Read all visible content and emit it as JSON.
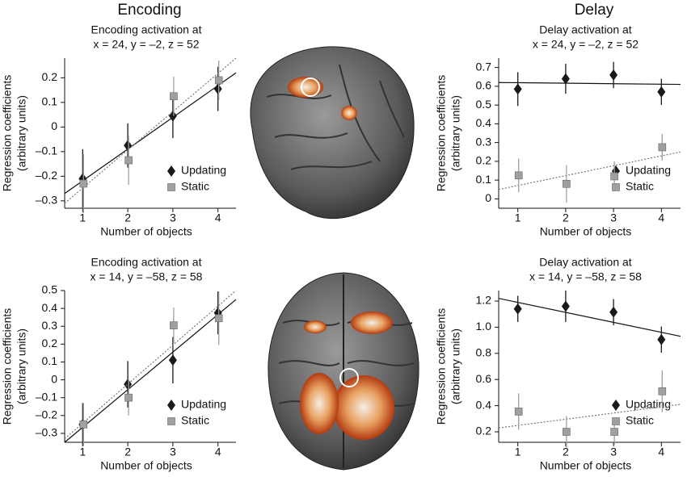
{
  "column_titles": [
    "Encoding",
    "Delay"
  ],
  "chart_data": [
    {
      "type": "scatter",
      "title": [
        "Encoding activation at",
        "x = 24, y = –2, z = 52"
      ],
      "ylabel": [
        "Regression coefficients",
        "(arbitrary units)"
      ],
      "xlabel": "Number of objects",
      "x": [
        1,
        2,
        3,
        4
      ],
      "xlim": [
        0.6,
        4.4
      ],
      "xticks": [
        1,
        2,
        3,
        4
      ],
      "ylim": [
        -0.33,
        0.28
      ],
      "yticks": [
        {
          "value": -0.3,
          "label": "–0.3"
        },
        {
          "value": -0.2,
          "label": "–0.2"
        },
        {
          "value": -0.1,
          "label": "–0.1"
        },
        0,
        0.1,
        0.2
      ],
      "legend": "lower right",
      "series": [
        {
          "name": "Updating",
          "color": "#1a1a1a",
          "marker": "diamond",
          "fit_style": "solid",
          "values": [
            -0.21,
            -0.075,
            0.045,
            0.155
          ],
          "errors": [
            0.12,
            0.09,
            0.09,
            0.09
          ],
          "fit": [
            -0.27,
            0.22
          ]
        },
        {
          "name": "Static",
          "color": "#a0a0a0",
          "marker": "square",
          "fit_style": "dotted",
          "values": [
            -0.23,
            -0.135,
            0.125,
            0.19
          ],
          "errors": [
            0.12,
            0.1,
            0.08,
            0.08
          ],
          "fit": [
            -0.31,
            0.28
          ]
        }
      ]
    },
    {
      "type": "scatter",
      "title": [
        "Delay activation at",
        "x = 24, y = –2, z = 52"
      ],
      "ylabel": [
        "Regression coefficients",
        "(arbitrary units)"
      ],
      "xlabel": "Number of objects",
      "x": [
        1,
        2,
        3,
        4
      ],
      "xlim": [
        0.6,
        4.4
      ],
      "xticks": [
        1,
        2,
        3,
        4
      ],
      "ylim": [
        -0.05,
        0.75
      ],
      "yticks": [
        0,
        0.1,
        0.2,
        0.3,
        0.4,
        0.5,
        0.6,
        0.7
      ],
      "legend": "lower right",
      "series": [
        {
          "name": "Updating",
          "color": "#1a1a1a",
          "marker": "diamond",
          "fit_style": "solid",
          "values": [
            0.585,
            0.64,
            0.66,
            0.57
          ],
          "errors": [
            0.09,
            0.08,
            0.07,
            0.07
          ],
          "fit": [
            0.62,
            0.61
          ]
        },
        {
          "name": "Static",
          "color": "#a0a0a0",
          "marker": "square",
          "fit_style": "dotted",
          "values": [
            0.125,
            0.08,
            0.12,
            0.275
          ],
          "errors": [
            0.09,
            0.1,
            0.08,
            0.07
          ],
          "fit": [
            0.05,
            0.25
          ]
        }
      ]
    },
    {
      "type": "scatter",
      "title": [
        "Encoding activation at",
        "x = 14, y = –58, z = 58"
      ],
      "ylabel": [
        "Regression coefficients",
        "(arbitrary units)"
      ],
      "xlabel": "Number of objects",
      "x": [
        1,
        2,
        3,
        4
      ],
      "xlim": [
        0.6,
        4.4
      ],
      "xticks": [
        1,
        2,
        3,
        4
      ],
      "ylim": [
        -0.35,
        0.5
      ],
      "yticks": [
        {
          "value": -0.3,
          "label": "–0.3"
        },
        {
          "value": -0.2,
          "label": "–0.2"
        },
        {
          "value": -0.1,
          "label": "–0.1"
        },
        0,
        0.1,
        0.2,
        0.3,
        0.4,
        0.5
      ],
      "legend": "lower right",
      "series": [
        {
          "name": "Updating",
          "color": "#1a1a1a",
          "marker": "diamond",
          "fit_style": "solid",
          "values": [
            -0.25,
            -0.025,
            0.11,
            0.375
          ],
          "errors": [
            0.12,
            0.13,
            0.13,
            0.12
          ],
          "fit": [
            -0.35,
            0.45
          ]
        },
        {
          "name": "Static",
          "color": "#a0a0a0",
          "marker": "square",
          "fit_style": "dotted",
          "values": [
            -0.25,
            -0.1,
            0.305,
            0.345
          ],
          "errors": [
            0.12,
            0.1,
            0.1,
            0.15
          ],
          "fit": [
            -0.33,
            0.5
          ]
        }
      ]
    },
    {
      "type": "scatter",
      "title": [
        "Delay activation at",
        "x = 14, y = –58, z = 58"
      ],
      "ylabel": [
        "Regression coefficients",
        "(arbitrary units)"
      ],
      "xlabel": "Number of objects",
      "x": [
        1,
        2,
        3,
        4
      ],
      "xlim": [
        0.6,
        4.4
      ],
      "xticks": [
        1,
        2,
        3,
        4
      ],
      "ylim": [
        0.12,
        1.28
      ],
      "yticks": [
        0.2,
        0.4,
        0.6,
        0.8,
        {
          "value": 1,
          "label": "1.0"
        },
        1.2
      ],
      "legend": "lower right",
      "series": [
        {
          "name": "Updating",
          "color": "#1a1a1a",
          "marker": "diamond",
          "fit_style": "solid",
          "values": [
            1.14,
            1.16,
            1.115,
            0.905
          ],
          "errors": [
            0.1,
            0.12,
            0.1,
            0.1
          ],
          "fit": [
            1.22,
            0.93
          ]
        },
        {
          "name": "Static",
          "color": "#a0a0a0",
          "marker": "square",
          "fit_style": "dotted",
          "values": [
            0.355,
            0.2,
            0.2,
            0.51
          ],
          "errors": [
            0.14,
            0.12,
            0.1,
            0.16
          ],
          "fit": [
            0.23,
            0.41
          ]
        }
      ]
    }
  ]
}
